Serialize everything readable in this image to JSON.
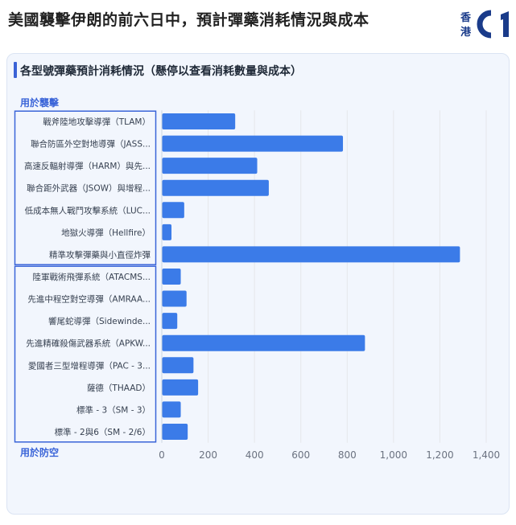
{
  "page": {
    "title": "美國襲擊伊朗的前六日中，預計彈藥消耗情況與成本",
    "logo": {
      "text_line1": "香",
      "text_line2": "港",
      "brand": "01",
      "color": "#1a3b8a"
    }
  },
  "card": {
    "title": "各型號彈藥預計消耗情況（懸停以查看消耗數量與成本）"
  },
  "colors": {
    "bar": "#3b7be8",
    "accent": "#3a64d8",
    "bracket": "#3a64d8",
    "grid": "#e5e7eb"
  },
  "chart_data": {
    "type": "bar",
    "orientation": "horizontal",
    "title": "",
    "xlabel": "",
    "ylabel": "",
    "xlim": [
      0,
      1400
    ],
    "xticks": [
      0,
      200,
      400,
      600,
      800,
      1000,
      1200,
      1400
    ],
    "xtick_labels": [
      "0",
      "200",
      "400",
      "600",
      "800",
      "1,000",
      "1,200",
      "1,400"
    ],
    "grid": "vertical",
    "groups": [
      {
        "label": "用於襲擊",
        "categories": [
          "戰斧陸地攻擊導彈（TLAM）",
          "聯合防區外空對地導彈（JASS...",
          "高速反輻射導彈（HARM）與先...",
          "聯合距外武器（JSOW）與增程...",
          "低成本無人戰鬥攻擊系統（LUC...",
          "地獄火導彈（Hellfire）",
          "精準攻擊彈藥與小直徑炸彈"
        ],
        "values": [
          315,
          780,
          410,
          460,
          95,
          40,
          1285
        ]
      },
      {
        "label": "用於防空",
        "categories": [
          "陸軍戰術飛彈系統（ATACMS...",
          "先進中程空對空導彈（AMRAA...",
          "響尾蛇導彈（Sidewinde...",
          "先進精確殺傷武器系統（APKW...",
          "愛國者三型增程導彈（PAC - 3...",
          "薩德（THAAD）",
          "標準 - 3（SM - 3）",
          "標準 - 2與6（SM - 2/6）"
        ],
        "values": [
          80,
          105,
          65,
          875,
          135,
          155,
          80,
          110
        ]
      }
    ]
  }
}
